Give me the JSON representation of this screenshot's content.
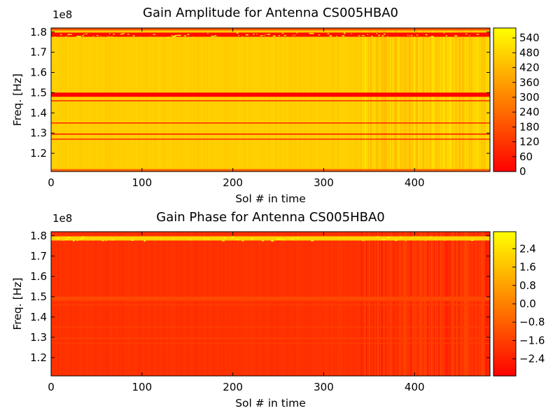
{
  "chart_data": [
    {
      "type": "heatmap",
      "title": "Gain Amplitude for Antenna CS005HBA0",
      "xlabel": "Sol # in time",
      "ylabel": "Freq. [Hz]",
      "y_exponent_label": "1e8",
      "xlim": [
        0,
        483
      ],
      "ylim": [
        111000000.0,
        182000000.0
      ],
      "x_ticks": [
        0,
        100,
        200,
        300,
        400
      ],
      "x_tick_labels": [
        "0",
        "100",
        "200",
        "300",
        "400"
      ],
      "y_ticks": [
        120000000.0,
        130000000.0,
        140000000.0,
        150000000.0,
        160000000.0,
        170000000.0,
        180000000.0
      ],
      "y_tick_labels": [
        "1.2",
        "1.3",
        "1.4",
        "1.5",
        "1.6",
        "1.7",
        "1.8"
      ],
      "colorbar": {
        "min": 0,
        "max": 580,
        "ticks": [
          0,
          60,
          120,
          180,
          240,
          300,
          360,
          420,
          480,
          540
        ],
        "tick_labels": [
          "0",
          "60",
          "120",
          "180",
          "240",
          "300",
          "360",
          "420",
          "480",
          "540"
        ],
        "colormap": "autumn",
        "color_low": "#ff0000",
        "color_high": "#ffff00"
      },
      "typical_value": 470,
      "noisy_region_start_sol": 340,
      "bands": [
        {
          "freq": 178700000.0,
          "value": 30,
          "kind": "flagged",
          "noisy": true
        },
        {
          "freq": 181500000.0,
          "value": 200,
          "kind": "low"
        },
        {
          "freq": 149000000.0,
          "value": 0,
          "kind": "flagged"
        },
        {
          "freq": 146000000.0,
          "value": 60,
          "kind": "line"
        },
        {
          "freq": 135000000.0,
          "value": 60,
          "kind": "line"
        },
        {
          "freq": 129500000.0,
          "value": 10,
          "kind": "line"
        },
        {
          "freq": 127000000.0,
          "value": 60,
          "kind": "line"
        },
        {
          "freq": 111500000.0,
          "value": 220,
          "kind": "low"
        }
      ]
    },
    {
      "type": "heatmap",
      "title": "Gain Phase for Antenna CS005HBA0",
      "xlabel": "Sol # in time",
      "ylabel": "Freq. [Hz]",
      "y_exponent_label": "1e8",
      "xlim": [
        0,
        483
      ],
      "ylim": [
        111000000.0,
        182000000.0
      ],
      "x_ticks": [
        0,
        100,
        200,
        300,
        400
      ],
      "x_tick_labels": [
        "0",
        "100",
        "200",
        "300",
        "400"
      ],
      "y_ticks": [
        120000000.0,
        130000000.0,
        140000000.0,
        150000000.0,
        160000000.0,
        170000000.0,
        180000000.0
      ],
      "y_tick_labels": [
        "1.2",
        "1.3",
        "1.4",
        "1.5",
        "1.6",
        "1.7",
        "1.8"
      ],
      "colorbar": {
        "min": -3.14,
        "max": 3.14,
        "ticks": [
          -2.4,
          -1.6,
          -0.8,
          0.0,
          0.8,
          1.6,
          2.4
        ],
        "tick_labels": [
          "−2.4",
          "−1.6",
          "−0.8",
          "0.0",
          "0.8",
          "1.6",
          "2.4"
        ],
        "colormap": "autumn",
        "color_low": "#ff0000",
        "color_high": "#ffff00"
      },
      "typical_value": -1.9,
      "noisy_region_start_sol": 340,
      "bands": [
        {
          "freq": 178700000.0,
          "value": 2.0,
          "kind": "flagged",
          "noisy": true
        },
        {
          "freq": 149000000.0,
          "value": -1.4,
          "kind": "flagged"
        },
        {
          "freq": 146000000.0,
          "value": -1.6,
          "kind": "line"
        },
        {
          "freq": 135000000.0,
          "value": -1.6,
          "kind": "line"
        },
        {
          "freq": 129500000.0,
          "value": -1.5,
          "kind": "line"
        },
        {
          "freq": 127000000.0,
          "value": -1.6,
          "kind": "line"
        }
      ]
    }
  ]
}
